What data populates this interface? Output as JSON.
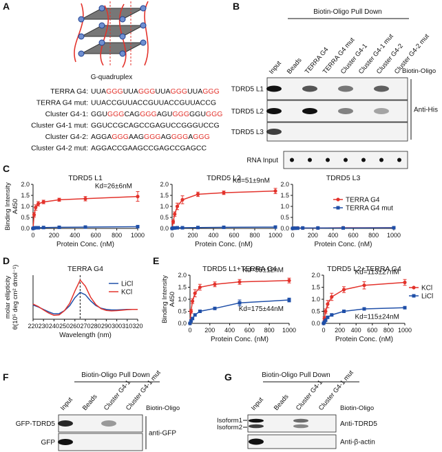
{
  "panel_labels": [
    "A",
    "B",
    "C",
    "D",
    "E",
    "F",
    "G"
  ],
  "A": {
    "caption": "G-quadruplex",
    "sequences": [
      {
        "name": "TERRA G4:",
        "parts": [
          {
            "text": "UUA"
          },
          {
            "text": "GGG",
            "color": "#e3322b"
          },
          {
            "text": "UUA"
          },
          {
            "text": "GGG",
            "color": "#e3322b"
          },
          {
            "text": "UUA"
          },
          {
            "text": "GGG",
            "color": "#e3322b"
          },
          {
            "text": "UUA"
          },
          {
            "text": "GGG",
            "color": "#e3322b"
          }
        ]
      },
      {
        "name": "TERRA G4 mut:",
        "parts": [
          {
            "text": "UUACCGUUACCGUUACCGUUACCG"
          }
        ]
      },
      {
        "name": "Cluster G4-1:",
        "parts": [
          {
            "text": "GGU"
          },
          {
            "text": "GGG",
            "color": "#e3322b"
          },
          {
            "text": "CAG"
          },
          {
            "text": "GGG",
            "color": "#e3322b"
          },
          {
            "text": "AGU"
          },
          {
            "text": "GGG",
            "color": "#e3322b"
          },
          {
            "text": "GGU"
          },
          {
            "text": "GGG",
            "color": "#e3322b"
          }
        ]
      },
      {
        "name": "Cluster G4-1 mut:",
        "parts": [
          {
            "text": "GGUCCGCAGCCGAGUCCGGGUCCG"
          }
        ]
      },
      {
        "name": "Cluster G4-2:",
        "parts": [
          {
            "text": "AGGA"
          },
          {
            "text": "GGG",
            "color": "#e3322b"
          },
          {
            "text": "AAG"
          },
          {
            "text": "GGG",
            "color": "#e3322b"
          },
          {
            "text": "AG"
          },
          {
            "text": "GGG",
            "color": "#e3322b"
          },
          {
            "text": "A"
          },
          {
            "text": "GGG",
            "color": "#e3322b"
          }
        ]
      },
      {
        "name": "Cluster G4-2 mut:",
        "parts": [
          {
            "text": "AGGACCGAAGCCGAGCCGAGCC"
          }
        ]
      }
    ]
  },
  "B": {
    "header": "Biotin-Oligo Pull Down",
    "lanes": [
      "Input",
      "Beads",
      "TERRA G4",
      "TERRA G4 mut",
      "Cluster G4-1",
      "Cluster G4-1 mut",
      "Cluster G4-2",
      "Cluster G4-2 mut"
    ],
    "oligo_label": "Biotin-Oligo",
    "rows": [
      "TDRD5 L1",
      "TDRD5 L2",
      "TDRD5 L3"
    ],
    "antibody": "Anti-His",
    "rna_row": "RNA Input"
  },
  "F": {
    "header": "Biotin-Oligo Pull Down",
    "lanes": [
      "Input",
      "Beads",
      "Cluster G4-1",
      "Cluster G4-1 mut"
    ],
    "oligo_label": "Biotin-Oligo",
    "rows": [
      "GFP-TDRD5",
      "GFP"
    ],
    "antibody": "anti-GFP"
  },
  "G": {
    "header": "Biotin-Oligo Pull Down",
    "lanes": [
      "Input",
      "Beads",
      "Cluster G4-1",
      "Cluster G4-1 mut"
    ],
    "oligo_label": "Biotin-Oligo",
    "rows": [
      "Anti-TDRD5",
      "Anti-β-actin"
    ],
    "isoforms": [
      "Isoform1",
      "Isoform2"
    ]
  },
  "chart_data": [
    {
      "type": "line",
      "title": "TDRD5 L1",
      "xlabel": "Protein Conc. (nM)",
      "ylabel": [
        "Binding Intensity",
        "A450"
      ],
      "x": [
        0,
        10,
        25,
        50,
        100,
        250,
        500,
        1000
      ],
      "xlim": [
        0,
        1000
      ],
      "xticks": [
        0,
        200,
        400,
        600,
        800,
        1000
      ],
      "ylim": [
        0,
        2
      ],
      "yticks": [
        {
          "value": 0,
          "label": "0.0"
        },
        {
          "value": 0.5,
          "label": "0.5"
        },
        {
          "value": 1,
          "label": "1.0"
        },
        {
          "value": 1.5,
          "label": "1.5"
        },
        {
          "value": 2,
          "label": "2.0"
        }
      ],
      "series": [
        {
          "color": "#e3322b",
          "marker": "circle",
          "values": [
            0,
            0.62,
            0.95,
            1.12,
            1.2,
            1.3,
            1.35,
            1.45
          ],
          "errors": [
            0,
            0.1,
            0.12,
            0.1,
            0.08,
            0.07,
            0.1,
            0.22
          ]
        },
        {
          "color": "#1f4fa8",
          "marker": "square",
          "values": [
            0,
            0.02,
            0.03,
            0.03,
            0.04,
            0.05,
            0.06,
            0.08
          ],
          "errors": [
            0,
            0.01,
            0.01,
            0.01,
            0.01,
            0.01,
            0.02,
            0.02
          ]
        }
      ],
      "annotations": [
        {
          "text": "Kd=26±6nM",
          "color": "#e3322b"
        }
      ]
    },
    {
      "type": "line",
      "title": "TDRD5 L2",
      "xlabel": "Protein Conc. (nM)",
      "x": [
        0,
        10,
        25,
        50,
        100,
        250,
        500,
        1000
      ],
      "xlim": [
        0,
        1000
      ],
      "xticks": [
        0,
        200,
        400,
        600,
        800,
        1000
      ],
      "ylim": [
        0,
        2
      ],
      "yticks": [
        {
          "value": 0,
          "label": "0.0"
        },
        {
          "value": 0.5,
          "label": "0.5"
        },
        {
          "value": 1,
          "label": "1.0"
        },
        {
          "value": 1.5,
          "label": "1.5"
        },
        {
          "value": 2,
          "label": "2.0"
        }
      ],
      "series": [
        {
          "color": "#e3322b",
          "marker": "circle",
          "values": [
            0,
            0.3,
            0.65,
            1.0,
            1.3,
            1.55,
            1.62,
            1.7
          ],
          "errors": [
            0,
            0.08,
            0.1,
            0.15,
            0.18,
            0.1,
            0.08,
            0.12
          ]
        },
        {
          "color": "#1f4fa8",
          "marker": "square",
          "values": [
            0,
            0.02,
            0.02,
            0.03,
            0.03,
            0.04,
            0.05,
            0.06
          ],
          "errors": [
            0,
            0.01,
            0.01,
            0.01,
            0.01,
            0.01,
            0.01,
            0.01
          ]
        }
      ],
      "annotations": [
        {
          "text": "Kd=51±9nM",
          "color": "#e3322b"
        }
      ]
    },
    {
      "type": "line",
      "title": "TDRD5 L3",
      "xlabel": "Protein Conc. (nM)",
      "x": [
        0,
        10,
        25,
        50,
        100,
        250,
        500,
        1000
      ],
      "xlim": [
        0,
        1000
      ],
      "xticks": [
        0,
        200,
        400,
        600,
        800,
        1000
      ],
      "ylim": [
        0,
        2
      ],
      "yticks": [
        {
          "value": 0,
          "label": "0.0"
        },
        {
          "value": 0.5,
          "label": "0.5"
        },
        {
          "value": 1,
          "label": "1.0"
        },
        {
          "value": 1.5,
          "label": "1.5"
        },
        {
          "value": 2,
          "label": "2.0"
        }
      ],
      "legend": "right",
      "series": [
        {
          "name": "TERRA G4",
          "color": "#e3322b",
          "marker": "circle",
          "values": [
            0,
            0.01,
            0.01,
            0.02,
            0.02,
            0.02,
            0.03,
            0.03
          ]
        },
        {
          "name": "TERRA G4 mut",
          "color": "#1f4fa8",
          "marker": "square",
          "values": [
            0,
            0.01,
            0.01,
            0.01,
            0.02,
            0.02,
            0.02,
            0.03
          ]
        }
      ]
    },
    {
      "type": "line",
      "title": "TERRA G4",
      "xlabel": "Wavelength (nm)",
      "ylabel": [
        "molar ellipticity",
        "θ(10⁵ deg cm² dmol⁻¹)"
      ],
      "x": [
        220,
        225,
        230,
        235,
        240,
        245,
        250,
        255,
        260,
        265,
        270,
        275,
        280,
        285,
        290,
        295,
        300,
        305,
        310,
        315,
        320
      ],
      "xlim": [
        220,
        320
      ],
      "xticks": [
        220,
        230,
        240,
        250,
        260,
        270,
        280,
        290,
        300,
        310,
        320
      ],
      "ylim": [
        -4,
        14
      ],
      "vline": 265,
      "legend": "upper right",
      "series": [
        {
          "name": "LiCl",
          "color": "#1f4fa8",
          "values": [
            1.8,
            1.0,
            0,
            -1,
            -1.8,
            -1.7,
            -0.5,
            1.5,
            4.8,
            7,
            6,
            3.5,
            1.6,
            0.5,
            0,
            -0.2,
            -0.2,
            -0.1,
            0,
            0,
            0
          ]
        },
        {
          "name": "KCl",
          "color": "#e3322b",
          "values": [
            2.2,
            1.2,
            -0.2,
            -1.5,
            -2.4,
            -2.2,
            -0.5,
            2.5,
            7.5,
            12,
            9.5,
            5,
            2,
            0.3,
            -0.4,
            -0.6,
            -0.5,
            -0.3,
            -0.1,
            0,
            0
          ]
        }
      ]
    },
    {
      "type": "line",
      "title": "TDRD5 L1+TERRA G4",
      "xlabel": "Protein Conc. (nM)",
      "ylabel": [
        "Binding Intensity",
        "A450"
      ],
      "x": [
        0,
        10,
        25,
        50,
        100,
        250,
        500,
        1000
      ],
      "xlim": [
        0,
        1000
      ],
      "xticks": [
        0,
        200,
        400,
        600,
        800,
        1000
      ],
      "ylim": [
        0,
        2
      ],
      "yticks": [
        {
          "value": 0,
          "label": "0.0"
        },
        {
          "value": 0.5,
          "label": "0.5"
        },
        {
          "value": 1,
          "label": "1.0"
        },
        {
          "value": 1.5,
          "label": "1.5"
        },
        {
          "value": 2,
          "label": "2.0"
        }
      ],
      "series": [
        {
          "color": "#e3322b",
          "marker": "circle",
          "values": [
            0,
            0.5,
            0.92,
            1.25,
            1.5,
            1.62,
            1.72,
            1.78
          ],
          "errors": [
            0,
            0.08,
            0.1,
            0.15,
            0.12,
            0.1,
            0.1,
            0.1
          ]
        },
        {
          "color": "#1f4fa8",
          "marker": "square",
          "values": [
            0,
            0.1,
            0.2,
            0.35,
            0.5,
            0.62,
            0.85,
            0.97
          ],
          "errors": [
            0,
            0.03,
            0.04,
            0.05,
            0.05,
            0.05,
            0.12,
            0.08
          ]
        }
      ],
      "annotations": [
        {
          "text": "Kd=55±12nM",
          "color": "#e3322b"
        },
        {
          "text": "Kd=175±44nM",
          "color": "#1f4fa8"
        }
      ]
    },
    {
      "type": "line",
      "title": "TDRD5 L2+TERRA G4",
      "xlabel": "Protein Conc. (nM)",
      "x": [
        0,
        10,
        25,
        50,
        100,
        250,
        500,
        1000
      ],
      "xlim": [
        0,
        1000
      ],
      "xticks": [
        0,
        200,
        400,
        600,
        800,
        1000
      ],
      "ylim": [
        0,
        2
      ],
      "yticks": [
        {
          "value": 0,
          "label": "0.0"
        },
        {
          "value": 0.5,
          "label": "0.5"
        },
        {
          "value": 1,
          "label": "1.0"
        },
        {
          "value": 1.5,
          "label": "1.5"
        },
        {
          "value": 2,
          "label": "2.0"
        }
      ],
      "legend": "outside right",
      "series": [
        {
          "name": "KCl",
          "color": "#e3322b",
          "marker": "circle",
          "values": [
            0,
            0.2,
            0.5,
            0.8,
            1.1,
            1.4,
            1.58,
            1.7
          ],
          "errors": [
            0,
            0.08,
            0.1,
            0.15,
            0.15,
            0.12,
            0.15,
            0.12
          ]
        },
        {
          "name": "LiCl",
          "color": "#1f4fa8",
          "marker": "square",
          "values": [
            0,
            0.05,
            0.13,
            0.25,
            0.35,
            0.5,
            0.6,
            0.65
          ],
          "errors": [
            0,
            0.02,
            0.03,
            0.04,
            0.04,
            0.05,
            0.04,
            0.05
          ]
        }
      ],
      "annotations": [
        {
          "text": "Kd=113±27nM",
          "color": "#e3322b"
        },
        {
          "text": "Kd=115±24nM",
          "color": "#1f4fa8"
        }
      ]
    }
  ]
}
